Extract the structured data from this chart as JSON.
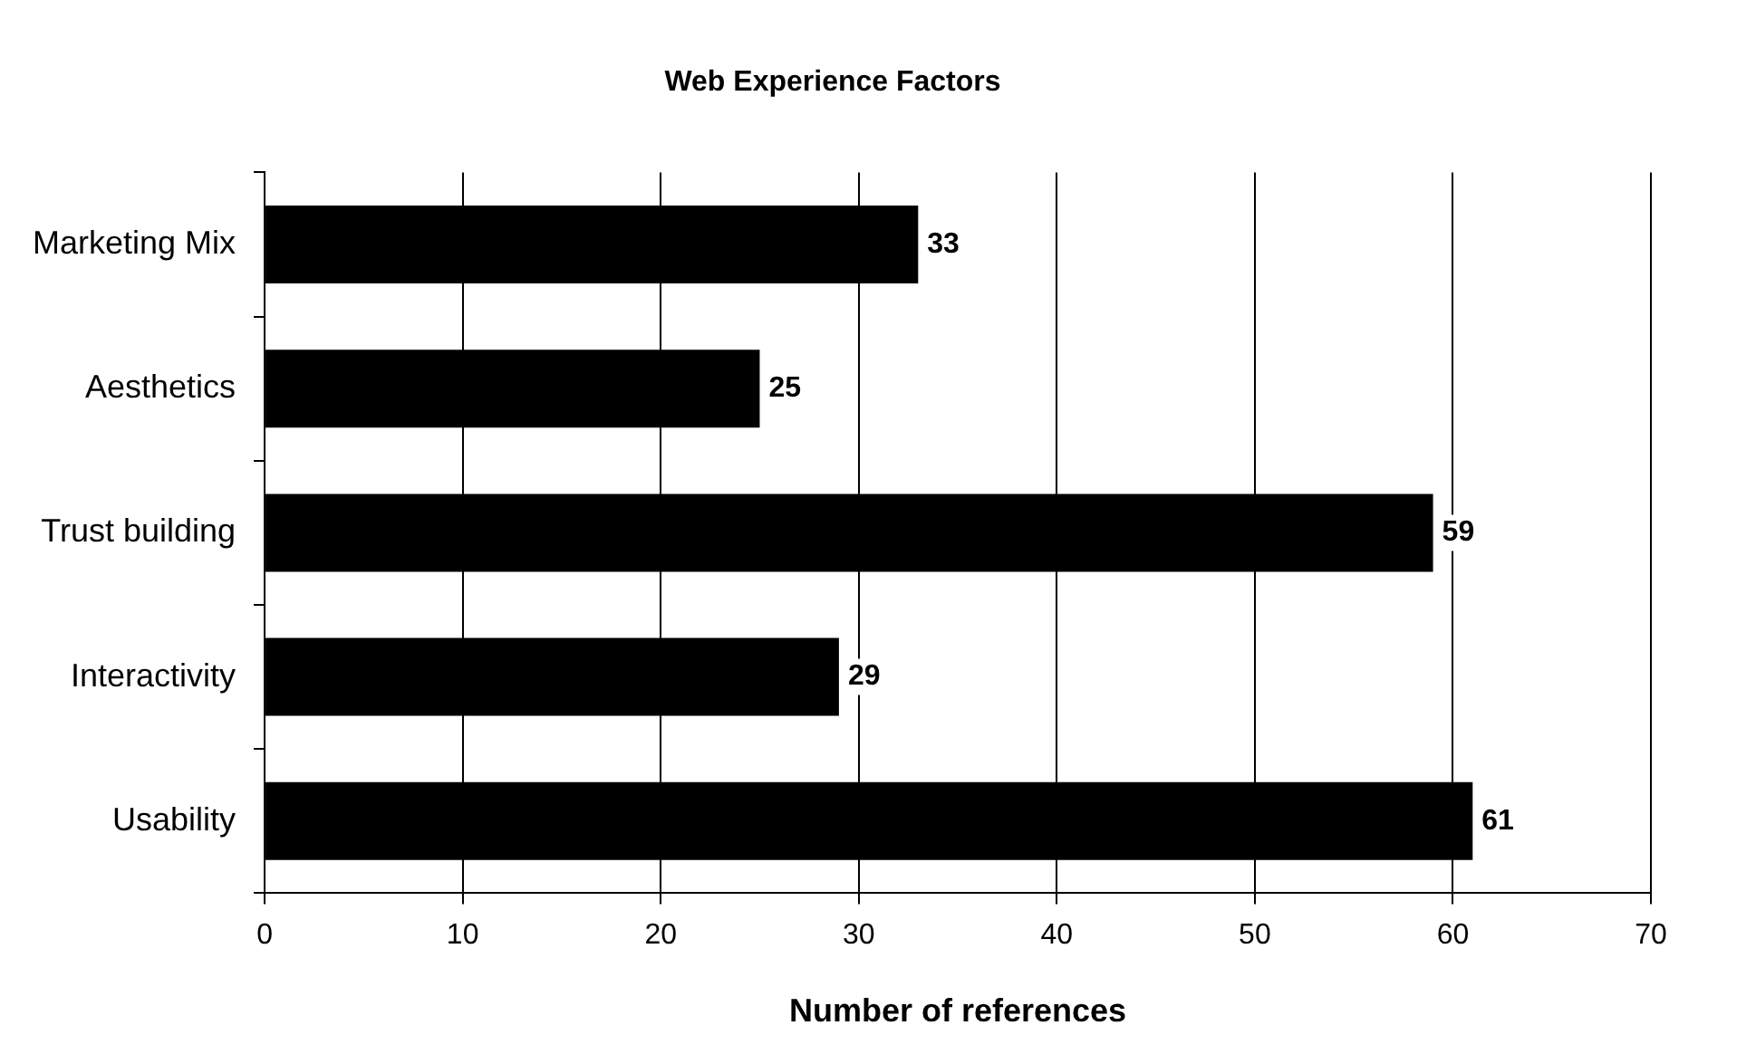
{
  "chart_data": {
    "type": "bar",
    "orientation": "horizontal",
    "title": "Web Experience Factors",
    "xlabel": "Number of references",
    "categories": [
      "Marketing Mix",
      "Aesthetics",
      "Trust building",
      "Interactivity",
      "Usability"
    ],
    "values": [
      33,
      25,
      59,
      29,
      61
    ],
    "color": "#000000",
    "xlim": [
      0,
      70
    ],
    "xticks": [
      0,
      10,
      20,
      30,
      40,
      50,
      60,
      70
    ],
    "grid": "x",
    "data_labels": true,
    "legend": false
  }
}
